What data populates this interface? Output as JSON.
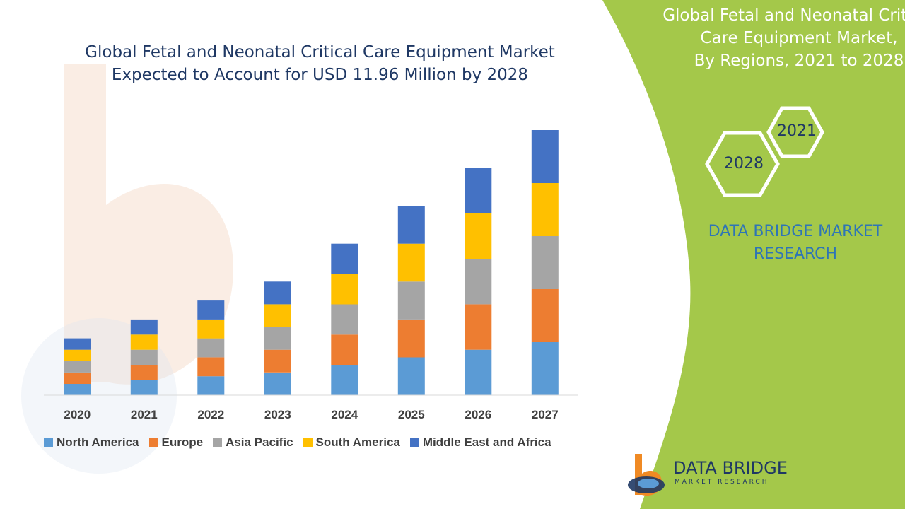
{
  "chart_data": {
    "type": "bar",
    "stacked": true,
    "title": [
      "Global Fetal and Neonatal Critical Care Equipment Market",
      "Expected to Account for USD 11.96 Million by 2028"
    ],
    "categories": [
      "2020",
      "2021",
      "2022",
      "2023",
      "2024",
      "2025",
      "2026",
      "2027"
    ],
    "series": [
      {
        "name": "North America",
        "color": "#5b9bd5",
        "values": [
          3,
          4,
          5,
          6,
          8,
          10,
          12,
          14
        ]
      },
      {
        "name": "Europe",
        "color": "#ed7d31",
        "values": [
          3,
          4,
          5,
          6,
          8,
          10,
          12,
          14
        ]
      },
      {
        "name": "Asia Pacific",
        "color": "#a5a5a5",
        "values": [
          3,
          4,
          5,
          6,
          8,
          10,
          12,
          14
        ]
      },
      {
        "name": "South America",
        "color": "#ffc000",
        "values": [
          3,
          4,
          5,
          6,
          8,
          10,
          12,
          14
        ]
      },
      {
        "name": "Middle East and Africa",
        "color": "#4472c4",
        "values": [
          3,
          4,
          5,
          6,
          8,
          10,
          12,
          14
        ]
      }
    ],
    "xlabel": "",
    "ylabel": "",
    "ylim": [
      0,
      70
    ],
    "grid": false,
    "legend_position": "bottom"
  },
  "panel": {
    "title": [
      "Global Fetal and Neonatal Critical",
      "Care Equipment Market,",
      "By Regions, 2021 to 2028"
    ],
    "hex_left": "2028",
    "hex_right": "2021",
    "brand": [
      "DATA BRIDGE MARKET",
      "RESEARCH"
    ],
    "accent_color": "#a4c84a"
  },
  "logo": {
    "name": "DATA BRIDGE",
    "tagline": "MARKET RESEARCH"
  }
}
